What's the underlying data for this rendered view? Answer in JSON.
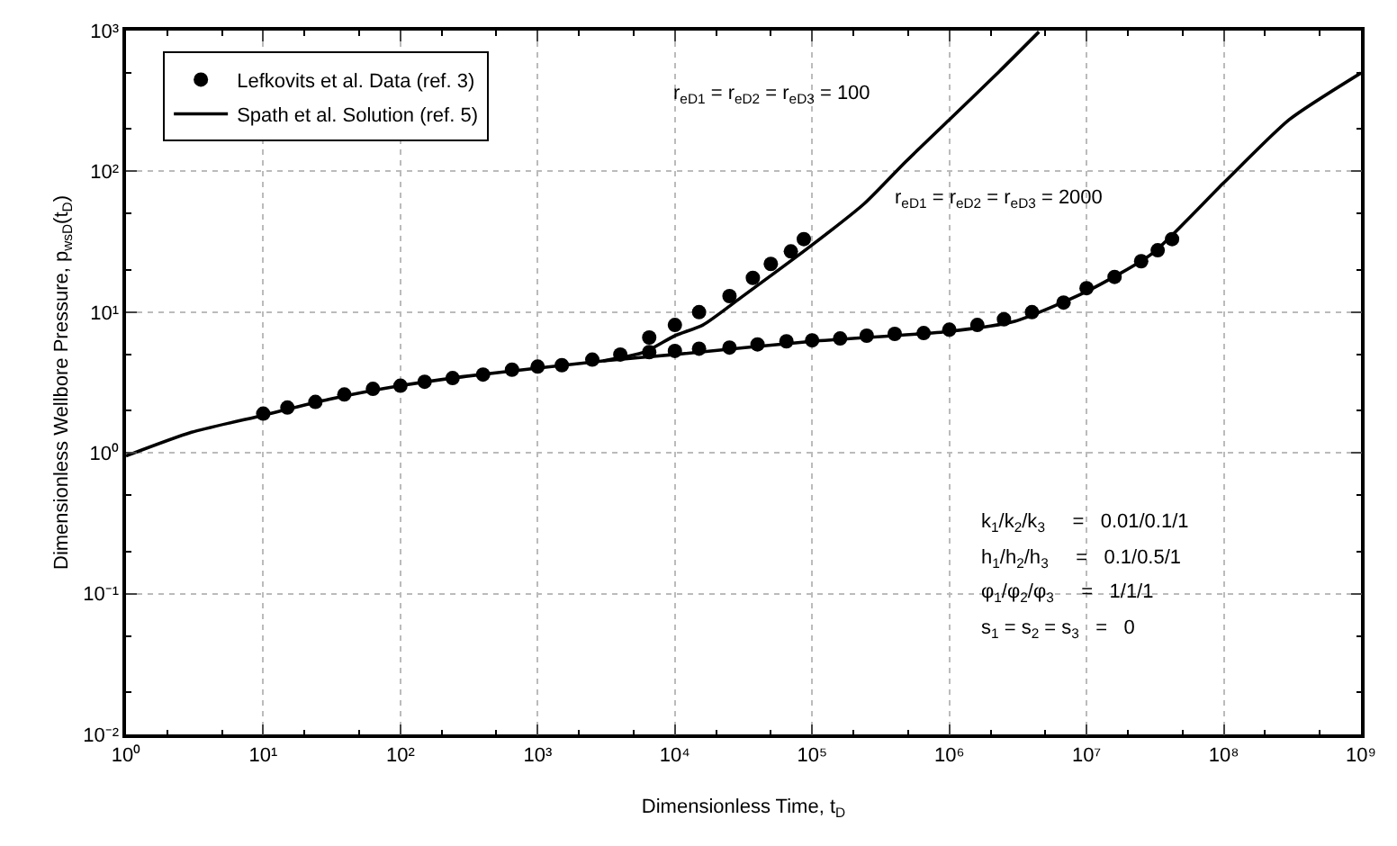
{
  "chart_data": {
    "type": "line",
    "xlabel": "Dimensionless Time, t$_{D}$",
    "ylabel": "Dimensionless Wellbore Pressure, p$_{wsD}$(t$_{D}$)",
    "log": "xy",
    "grid": true,
    "legend": "top left",
    "line_style": "solid",
    "xlim": [
      1,
      1000000000
    ],
    "ylim": [
      0.01,
      1000
    ],
    "xticks": [
      {
        "value": 1,
        "label": "10⁰"
      },
      {
        "value": 10,
        "label": "10¹"
      },
      {
        "value": 100,
        "label": "10²"
      },
      {
        "value": 1000,
        "label": "10³"
      },
      {
        "value": 10000,
        "label": "10⁴"
      },
      {
        "value": 100000,
        "label": "10⁵"
      },
      {
        "value": 1000000,
        "label": "10⁶"
      },
      {
        "value": 10000000,
        "label": "10⁷"
      },
      {
        "value": 100000000,
        "label": "10⁸"
      },
      {
        "value": 1000000000,
        "label": "10⁹"
      }
    ],
    "yticks": [
      {
        "value": 0.01,
        "label": "10⁻²"
      },
      {
        "value": 0.1,
        "label": "10⁻¹"
      },
      {
        "value": 1,
        "label": "10⁰"
      },
      {
        "value": 10,
        "label": "10¹"
      },
      {
        "value": 100,
        "label": "10²"
      },
      {
        "value": 1000,
        "label": "10³"
      }
    ],
    "series": [
      {
        "name": "Lefkovits et al. Data (ref. 3)",
        "type": "scatter",
        "marker": "circle",
        "color": "#000000",
        "x": [
          10,
          15,
          24,
          39,
          63,
          100,
          150,
          240,
          400,
          650,
          1000,
          1500,
          2500,
          4000,
          6500,
          10000,
          15000,
          25000,
          40000,
          65000,
          100000,
          160000,
          250000,
          400000,
          650000,
          1000000,
          1600000,
          2500000,
          4000000,
          6800000,
          10000000,
          16000000,
          25000000,
          33000000,
          42000000,
          6500,
          10000,
          15000,
          25000,
          37000,
          50000,
          70000,
          87000
        ],
        "values": [
          1.9,
          2.1,
          2.3,
          2.6,
          2.85,
          3.0,
          3.2,
          3.4,
          3.6,
          3.9,
          4.1,
          4.2,
          4.6,
          5.0,
          5.2,
          5.3,
          5.5,
          5.6,
          5.9,
          6.2,
          6.3,
          6.5,
          6.8,
          7.0,
          7.1,
          7.5,
          8.1,
          8.9,
          10,
          11.7,
          14.8,
          17.8,
          23,
          27.5,
          33,
          6.6,
          8.1,
          10,
          13,
          17.5,
          22,
          27,
          33
        ]
      },
      {
        "name": "Spath et al. Solution (ref. 5)",
        "color": "#000000",
        "x": [
          1,
          3,
          10,
          30,
          100,
          300,
          1000,
          3000,
          10000,
          100000,
          1000000,
          3000000,
          10000000,
          30000000,
          100000000,
          300000000,
          1000000000
        ],
        "values": [
          0.95,
          1.4,
          1.85,
          2.4,
          3.0,
          3.5,
          4.0,
          4.5,
          5.0,
          6.2,
          7.3,
          8.6,
          14,
          26,
          83,
          233,
          500
        ]
      },
      {
        "color": "#000000",
        "x": [
          3000,
          6000,
          10000,
          16000,
          30000,
          100000,
          240000,
          480000,
          1000000,
          2300000,
          4500000
        ],
        "values": [
          4.5,
          5.2,
          6.8,
          8.1,
          12.6,
          30,
          59,
          117,
          233,
          510,
          980
        ]
      }
    ],
    "annotations": [
      "r$_{eD1}$ = r$_{eD2}$ = r$_{eD3}$ = 100",
      "r$_{eD1}$ = r$_{eD2}$ = r$_{eD3}$ = 2000",
      "k$_{1}$/k$_{2}$/k$_{3}$     =   0.01/0.1/1",
      "h$_{1}$/h$_{2}$/h$_{3}$     =   0.1/0.5/1",
      "φ$_{1}$/φ$_{2}$/φ$_{3}$     =   1/1/1",
      "s$_{1}$ = s$_{2}$ = s$_{3}$   =   0"
    ]
  }
}
